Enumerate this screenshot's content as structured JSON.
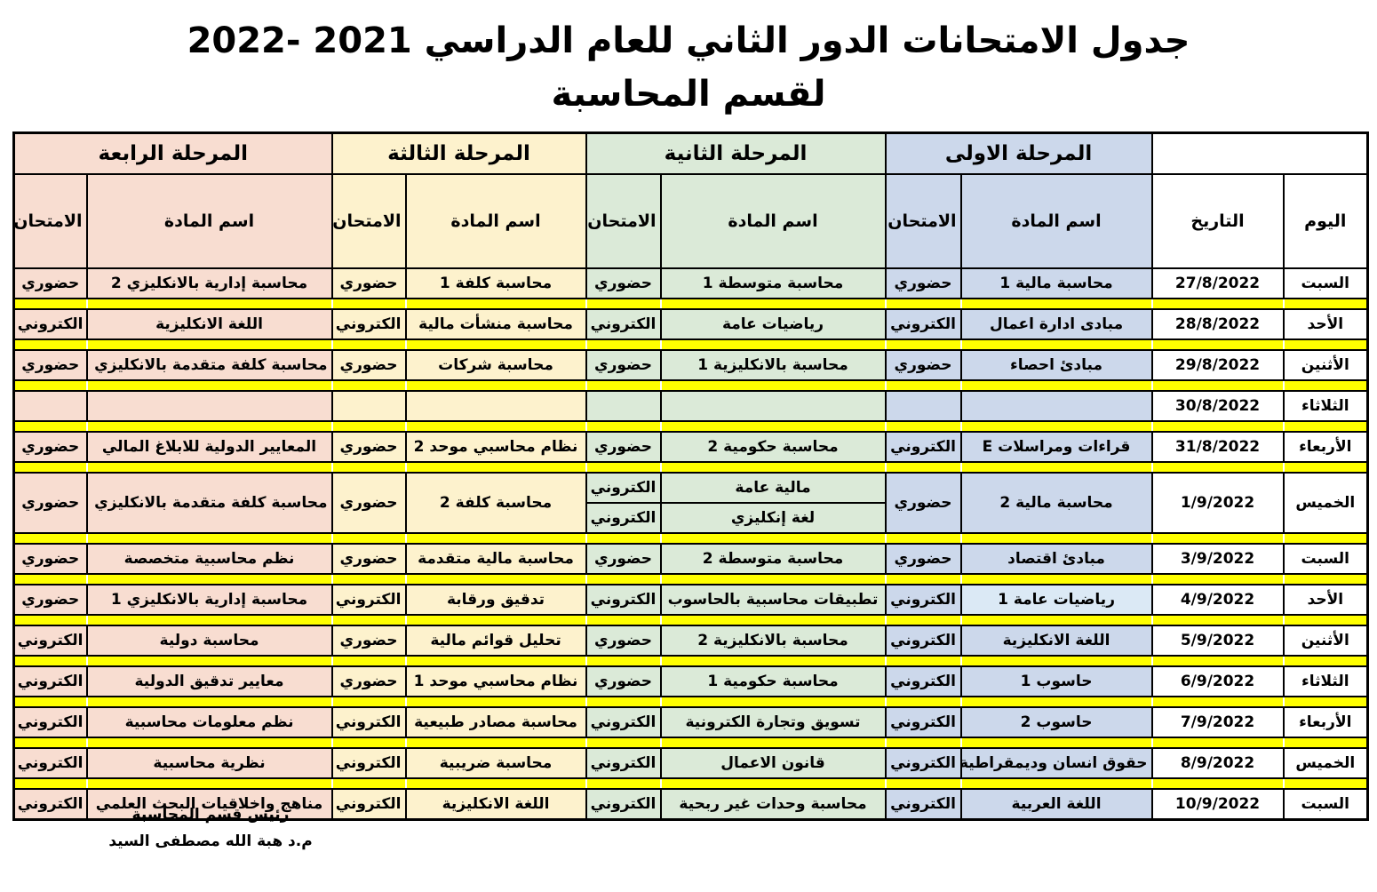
{
  "title": {
    "line1": "جدول الامتحانات الدور الثاني للعام الدراسي 2021 -2022",
    "line2": "لقسم المحاسبة"
  },
  "table": {
    "day_header": "اليوم",
    "date_header": "التاريخ",
    "subject_header": "اسم المادة",
    "exam_header": "الامتحان",
    "stages": {
      "s1": {
        "label": "المرحلة الاولى",
        "color": "#ccd8eb"
      },
      "s2": {
        "label": "المرحلة الثانية",
        "color": "#dbead8"
      },
      "s3": {
        "label": "المرحلة الثالثة",
        "color": "#fdf2cd"
      },
      "s4": {
        "label": "المرحلة الرابعة",
        "color": "#f8ddd1"
      }
    },
    "rows": [
      {
        "day": "السبت",
        "date": "27/8/2022",
        "s1": {
          "subject": "محاسبة مالية 1",
          "exam": "حضوري"
        },
        "s2": {
          "subject": "محاسبة متوسطة 1",
          "exam": "حضوري"
        },
        "s3": {
          "subject": "محاسبة كلفة 1",
          "exam": "حضوري"
        },
        "s4": {
          "subject": "محاسبة إدارية بالانكليزي 2",
          "exam": "حضوري"
        }
      },
      {
        "day": "الأحد",
        "date": "28/8/2022",
        "s1": {
          "subject": "مبادى ادارة اعمال",
          "exam": "الكتروني"
        },
        "s2": {
          "subject": "رياضيات عامة",
          "exam": "الكتروني"
        },
        "s3": {
          "subject": "محاسبة منشأت مالية",
          "exam": "الكتروني"
        },
        "s4": {
          "subject": "اللغة الانكليزية",
          "exam": "الكتروني"
        }
      },
      {
        "day": "الأثنين",
        "date": "29/8/2022",
        "s1": {
          "subject": "مبادئ احصاء",
          "exam": "حضوري"
        },
        "s2": {
          "subject": "محاسبة بالانكليزية 1",
          "exam": "حضوري"
        },
        "s3": {
          "subject": "محاسبة شركات",
          "exam": "حضوري"
        },
        "s4": {
          "subject": "محاسبة كلفة متقدمة بالانكليزي 1",
          "exam": "حضوري"
        }
      },
      {
        "day": "الثلاثاء",
        "date": "30/8/2022",
        "s1": {
          "subject": "",
          "exam": ""
        },
        "s2": {
          "subject": "",
          "exam": ""
        },
        "s3": {
          "subject": "",
          "exam": ""
        },
        "s4": {
          "subject": "",
          "exam": ""
        }
      },
      {
        "day": "الأربعاء",
        "date": "31/8/2022",
        "s1": {
          "subject": "قراءات ومراسلات E",
          "exam": "الكتروني"
        },
        "s2": {
          "subject": "محاسبة حكومية 2",
          "exam": "حضوري"
        },
        "s3": {
          "subject": "نظام محاسبي موحد 2",
          "exam": "حضوري"
        },
        "s4": {
          "subject": "المعايير الدولية للابلاغ المالي",
          "exam": "حضوري"
        }
      },
      {
        "day": "الخميس",
        "date": "1/9/2022",
        "s1": {
          "subject": "محاسبة مالية 2",
          "exam": "حضوري"
        },
        "s2_split": [
          {
            "subject": "مالية عامة",
            "exam": "الكتروني"
          },
          {
            "subject": "لغة إنكليزي",
            "exam": "الكتروني"
          }
        ],
        "s3": {
          "subject": "محاسبة كلفة 2",
          "exam": "حضوري"
        },
        "s4": {
          "subject": "محاسبة كلفة متقدمة بالانكليزي 2",
          "exam": "حضوري"
        }
      },
      {
        "day": "السبت",
        "date": "3/9/2022",
        "s1": {
          "subject": "مبادئ اقتصاد",
          "exam": "حضوري"
        },
        "s2": {
          "subject": "محاسبة متوسطة 2",
          "exam": "حضوري"
        },
        "s3": {
          "subject": "محاسبة مالية متقدمة",
          "exam": "حضوري"
        },
        "s4": {
          "subject": "نظم محاسبية متخصصة",
          "exam": "حضوري"
        }
      },
      {
        "day": "الأحد",
        "date": "4/9/2022",
        "s1": {
          "subject": "رياضيات عامة 1",
          "exam": "الكتروني"
        },
        "s2": {
          "subject": "تطبيقات محاسبية بالحاسوب",
          "exam": "الكتروني"
        },
        "s3": {
          "subject": "تدقيق ورقابة",
          "exam": "الكتروني"
        },
        "s4": {
          "subject": "محاسبة إدارية بالانكليزي 1",
          "exam": "حضوري"
        }
      },
      {
        "day": "الأثنين",
        "date": "5/9/2022",
        "s1": {
          "subject": "اللغة الانكليزية",
          "exam": "الكتروني"
        },
        "s2": {
          "subject": "محاسبة بالانكليزية 2",
          "exam": "حضوري"
        },
        "s3": {
          "subject": "تحليل قوائم مالية",
          "exam": "حضوري"
        },
        "s4": {
          "subject": "محاسبة دولية",
          "exam": "الكتروني"
        }
      },
      {
        "day": "الثلاثاء",
        "date": "6/9/2022",
        "s1": {
          "subject": "حاسوب 1",
          "exam": "الكتروني"
        },
        "s2": {
          "subject": "محاسبة حكومية 1",
          "exam": "حضوري"
        },
        "s3": {
          "subject": "نظام محاسبي موحد 1",
          "exam": "حضوري"
        },
        "s4": {
          "subject": "معايير تدقيق الدولية",
          "exam": "الكتروني"
        }
      },
      {
        "day": "الأربعاء",
        "date": "7/9/2022",
        "s1": {
          "subject": "حاسوب 2",
          "exam": "الكتروني"
        },
        "s2": {
          "subject": "تسويق وتجارة الكترونية",
          "exam": "الكتروني"
        },
        "s3": {
          "subject": "محاسبة مصادر طبيعية",
          "exam": "الكتروني"
        },
        "s4": {
          "subject": "نظم معلومات محاسبية",
          "exam": "الكتروني"
        }
      },
      {
        "day": "الخميس",
        "date": "8/9/2022",
        "s1": {
          "subject": "حقوق انسان وديمقراطية",
          "exam": "الكتروني"
        },
        "s2": {
          "subject": "قانون الاعمال",
          "exam": "الكتروني"
        },
        "s3": {
          "subject": "محاسبة ضريبية",
          "exam": "الكتروني"
        },
        "s4": {
          "subject": "نظرية محاسبية",
          "exam": "الكتروني"
        }
      },
      {
        "day": "السبت",
        "date": "10/9/2022",
        "s1": {
          "subject": "اللغة العربية",
          "exam": "الكتروني"
        },
        "s2": {
          "subject": "محاسبة وحدات غير ربحية",
          "exam": "الكتروني"
        },
        "s3": {
          "subject": "اللغة الانكليزية",
          "exam": "الكتروني"
        },
        "s4": {
          "subject": "مناهج واخلاقيات البحث العلمي",
          "exam": "الكتروني"
        }
      }
    ]
  },
  "signature": {
    "line1": "رئيس قسم المحاسبة",
    "line2": "م.د هبة الله مصطفى السيد"
  },
  "colors": {
    "separator": "#ffff00",
    "border": "#000000",
    "background": "#ffffff",
    "stage1_light_cell": "#dbe9f5"
  }
}
